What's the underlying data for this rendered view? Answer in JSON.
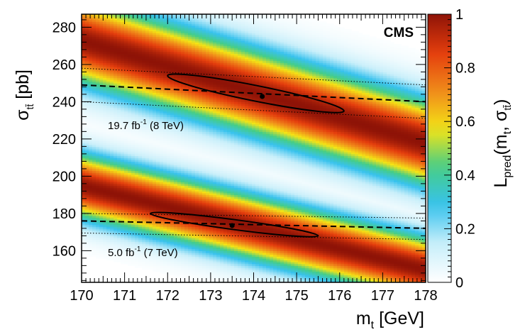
{
  "chart_data": {
    "type": "heatmap",
    "title": "",
    "label": "CMS",
    "xlabel": "m_t [GeV]",
    "ylabel": "σ_tt̄ [pb]",
    "colorbar_label": "L_pred(m_t, σ_tt̄)",
    "xlim": [
      170,
      178
    ],
    "ylim": [
      143,
      287
    ],
    "zlim": [
      0,
      1
    ],
    "x_ticks": [
      170,
      171,
      172,
      173,
      174,
      175,
      176,
      177,
      178
    ],
    "y_ticks": [
      160,
      180,
      200,
      220,
      240,
      260,
      280
    ],
    "z_ticks": [
      0,
      0.2,
      0.4,
      0.6,
      0.8,
      1
    ],
    "colormap": [
      "#ffffff",
      "#c9effa",
      "#38c2ee",
      "#44cd88",
      "#f4e416",
      "#f08a1a",
      "#e43d0d",
      "#8e1307"
    ],
    "bands": [
      {
        "name": "8 TeV",
        "annotation": "19.7 fb-1 (8 TeV)",
        "pred_ridge": {
          "x": [
            170,
            178
          ],
          "y": [
            273,
            218
          ]
        },
        "pred_width_pb": 16,
        "measured_mt": 174.2,
        "measured_xsec": 242.8,
        "fit_line": {
          "x": [
            170,
            178
          ],
          "y": [
            249,
            240
          ]
        },
        "fit_band_upper": {
          "x": [
            170,
            178
          ],
          "y": [
            258,
            249
          ]
        },
        "fit_band_lower": {
          "x": [
            170,
            178
          ],
          "y": [
            240,
            231
          ]
        },
        "ellipse": {
          "mt_min": 172.0,
          "mt_max": 176.1,
          "xsec_max": 254,
          "xsec_min": 235
        }
      },
      {
        "name": "7 TeV",
        "annotation": "5.0 fb-1 (7 TeV)",
        "pred_ridge": {
          "x": [
            170,
            178
          ],
          "y": [
            195,
            150
          ]
        },
        "pred_width_pb": 12,
        "measured_mt": 173.5,
        "measured_xsec": 173.5,
        "fit_line": {
          "x": [
            170,
            178
          ],
          "y": [
            176,
            172
          ]
        },
        "fit_band_upper": {
          "x": [
            170,
            178
          ],
          "y": [
            180,
            177.5
          ]
        },
        "fit_band_lower": {
          "x": [
            170,
            178
          ],
          "y": [
            169.5,
            166
          ]
        },
        "ellipse": {
          "mt_min": 171.6,
          "mt_max": 175.5,
          "xsec_max": 180,
          "xsec_min": 168
        }
      }
    ]
  }
}
